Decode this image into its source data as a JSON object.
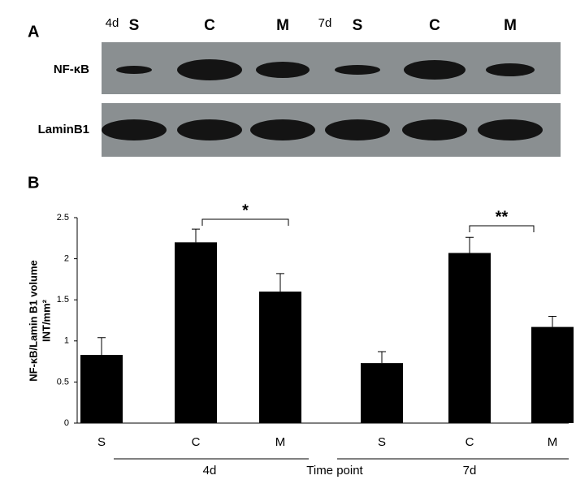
{
  "panel_a": {
    "label": "A",
    "groups": [
      {
        "label": "4d",
        "lanes": [
          "S",
          "C",
          "M"
        ]
      },
      {
        "label": "7d",
        "lanes": [
          "S",
          "C",
          "M"
        ]
      }
    ],
    "rows": [
      "NF-κB",
      "LaminB1"
    ]
  },
  "chart_data": {
    "type": "bar",
    "panel_label": "B",
    "ylabel": [
      "NF-κB/Lamin B1 volume",
      "INT/mm²"
    ],
    "categories": [
      "S",
      "C",
      "M",
      "S",
      "C",
      "M"
    ],
    "values": [
      0.83,
      2.2,
      1.6,
      0.73,
      2.07,
      1.17
    ],
    "errors": [
      0.21,
      0.16,
      0.22,
      0.14,
      0.19,
      0.13
    ],
    "color": "#000000",
    "groups": [
      "4d",
      "7d"
    ],
    "xlabel": "Time point",
    "annotations": [
      "*",
      "**"
    ],
    "ylim": [
      0,
      2.5
    ],
    "yticks": [
      0,
      0.5,
      1,
      1.5,
      2,
      2.5
    ]
  }
}
